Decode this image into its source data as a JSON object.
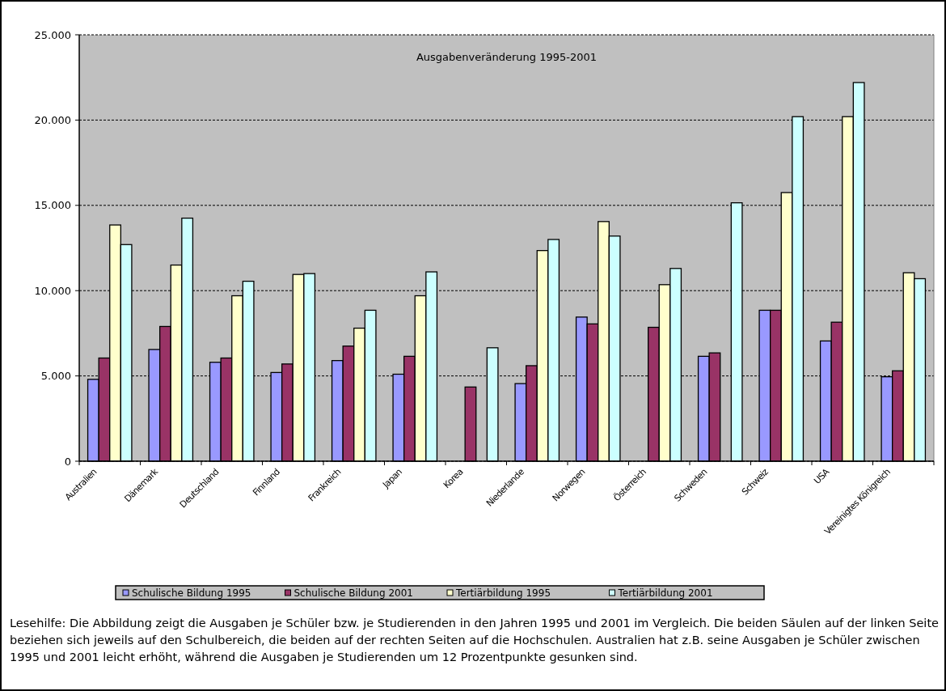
{
  "chart_data": {
    "type": "bar",
    "title": "Ausgabenveränderung 1995-2001",
    "categories": [
      "Australien",
      "Dänemark",
      "Deutschland",
      "Finnland",
      "Frankreich",
      "Japan",
      "Korea",
      "Niederlande",
      "Norwegen",
      "Österreich",
      "Schweden",
      "Schweiz",
      "USA",
      "Vereinigtes Königreich"
    ],
    "series": [
      {
        "name": "Schulische Bildung 1995",
        "color": "#9999ff",
        "values": [
          4800,
          6550,
          5800,
          5200,
          5900,
          5100,
          null,
          4550,
          8450,
          null,
          6150,
          8850,
          7050,
          4950
        ]
      },
      {
        "name": "Schulische Bildung 2001",
        "color": "#993366",
        "values": [
          6050,
          7900,
          6050,
          5700,
          6750,
          6150,
          4350,
          5600,
          8050,
          7850,
          6350,
          8850,
          8150,
          5300
        ]
      },
      {
        "name": "Tertiärbildung 1995",
        "color": "#ffffcc",
        "values": [
          13850,
          11500,
          9700,
          10950,
          7800,
          9700,
          null,
          12350,
          14050,
          10350,
          null,
          15750,
          20200,
          11050
        ]
      },
      {
        "name": "Tertiärbildung 2001",
        "color": "#ccffff",
        "values": [
          12700,
          14250,
          10550,
          11000,
          8850,
          11100,
          6650,
          13000,
          13200,
          11300,
          15150,
          20200,
          22200,
          10700
        ]
      }
    ],
    "ylim": [
      0,
      25000
    ],
    "yticks": [
      {
        "value": 0,
        "label": "0"
      },
      {
        "value": 5000,
        "label": "5.000"
      },
      {
        "value": 10000,
        "label": "10.000"
      },
      {
        "value": 15000,
        "label": "15.000"
      },
      {
        "value": 20000,
        "label": "20.000"
      },
      {
        "value": 25000,
        "label": "25.000"
      }
    ],
    "grid": "y",
    "legend": "bottom",
    "annotations": [
      "Lesehilfe: Die Abbildung zeigt die Ausgaben je Schüler bzw. je Studierenden in den Jahren 1995 und 2001 im Vergleich. Die beiden Säulen auf der linken Seite beziehen sich jeweils auf den Schulbereich, die beiden auf der rechten Seiten auf die Hochschulen. Australien hat z.B. seine Ausgaben je Schüler zwischen 1995 und 2001 leicht erhöht, während die Ausgaben je Studierenden um 12 Prozentpunkte gesunken sind."
    ]
  }
}
